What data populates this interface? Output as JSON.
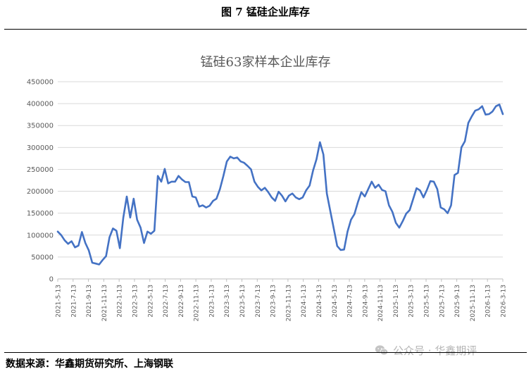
{
  "figure_title": "图 7  锰硅企业库存",
  "source_text": "数据来源：华鑫期货研究所、上海钢联",
  "watermark": {
    "icon": "wechat-icon",
    "text": "公众号 · 华鑫期评"
  },
  "colors": {
    "line": "#4472C4",
    "grid": "#d9d9d9",
    "axis_text": "#595959",
    "title_text": "#595959"
  },
  "chart_data": {
    "type": "line",
    "title": "锰硅63家样本企业库存",
    "xlabel": "",
    "ylabel": "",
    "ylim": [
      0,
      450000
    ],
    "yticks": [
      0,
      50000,
      100000,
      150000,
      200000,
      250000,
      300000,
      350000,
      400000,
      450000
    ],
    "xticks": [
      "2021-5-13",
      "2021-7-13",
      "2021-9-13",
      "2021-11-13",
      "2022-1-13",
      "2022-3-13",
      "2022-5-13",
      "2022-7-13",
      "2022-9-13",
      "2022-11-13",
      "2023-1-13",
      "2023-3-13",
      "2023-5-13",
      "2023-7-13",
      "2023-9-13",
      "2023-11-13",
      "2024-1-13",
      "2024-3-13",
      "2024-5-13",
      "2024-7-13",
      "2024-9-13",
      "2024-11-13",
      "2025-1-13",
      "2025-3-13",
      "2025-5-13",
      "2025-7-13",
      "2025-9-13",
      "2025-11-13",
      "2026-1-13",
      "2026-3-13"
    ],
    "grid": true,
    "legend": "none",
    "series": [
      {
        "values": [
          108000,
          100000,
          88000,
          80000,
          86000,
          72000,
          76000,
          107000,
          82000,
          65000,
          37000,
          35000,
          33000,
          43000,
          52000,
          95000,
          115000,
          110000,
          70000,
          140000,
          188000,
          140000,
          183000,
          135000,
          117000,
          82000,
          108000,
          103000,
          110000,
          235000,
          222000,
          251000,
          218000,
          222000,
          222000,
          235000,
          227000,
          221000,
          221000,
          188000,
          186000,
          165000,
          168000,
          163000,
          167000,
          178000,
          183000,
          205000,
          235000,
          268000,
          279000,
          275000,
          277000,
          268000,
          265000,
          258000,
          250000,
          222000,
          210000,
          202000,
          208000,
          198000,
          186000,
          178000,
          199000,
          190000,
          177000,
          190000,
          195000,
          186000,
          182000,
          186000,
          202000,
          213000,
          247000,
          273000,
          312000,
          284000,
          195000,
          155000,
          115000,
          75000,
          66000,
          67000,
          108000,
          135000,
          148000,
          175000,
          198000,
          188000,
          205000,
          222000,
          208000,
          215000,
          203000,
          200000,
          168000,
          153000,
          128000,
          117000,
          132000,
          149000,
          157000,
          182000,
          207000,
          202000,
          186000,
          203000,
          223000,
          222000,
          205000,
          163000,
          159000,
          150000,
          168000,
          237000,
          242000,
          300000,
          314000,
          356000,
          371000,
          384000,
          387000,
          394000,
          375000,
          376000,
          382000,
          394000,
          398000,
          376000
        ]
      }
    ]
  }
}
